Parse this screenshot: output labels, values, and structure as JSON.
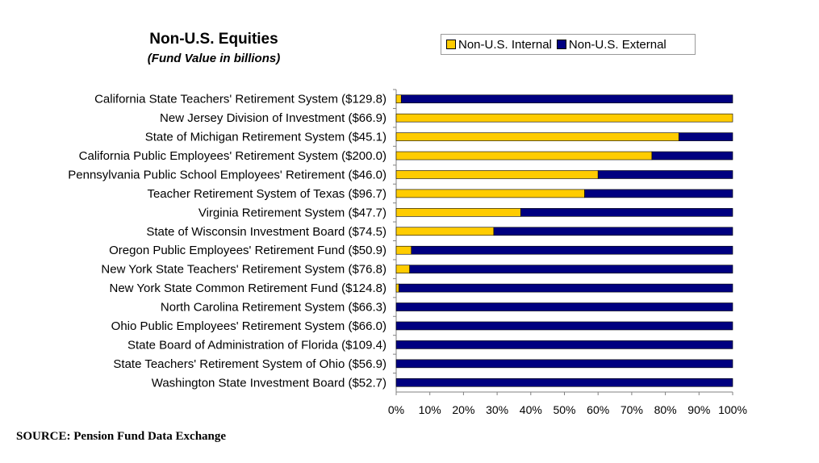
{
  "chart_data": {
    "type": "bar",
    "orientation": "horizontal",
    "stacked": true,
    "title": "Non-U.S. Equities",
    "subtitle": "(Fund Value in billions)",
    "categories": [
      "California State Teachers' Retirement System ($129.8)",
      "New Jersey Division of Investment ($66.9)",
      "State of Michigan Retirement System ($45.1)",
      "California Public Employees' Retirement System ($200.0)",
      "Pennsylvania Public School Employees' Retirement ($46.0)",
      "Teacher Retirement System of Texas ($96.7)",
      "Virginia Retirement System ($47.7)",
      "State of Wisconsin Investment Board ($74.5)",
      "Oregon Public Employees' Retirement Fund ($50.9)",
      "New York State Teachers' Retirement System ($76.8)",
      "New York State Common Retirement Fund ($124.8)",
      "North Carolina Retirement System ($66.3)",
      "Ohio Public Employees' Retirement System ($66.0)",
      "State Board of Administration of Florida ($109.4)",
      "State Teachers' Retirement System of Ohio ($56.9)",
      "Washington State Investment Board ($52.7)"
    ],
    "series": [
      {
        "name": "Non-U.S. Internal",
        "color": "#FFCC00",
        "values": [
          1.5,
          100,
          84,
          76,
          60,
          56,
          37,
          29,
          4.5,
          4,
          0.8,
          0,
          0,
          0,
          0,
          0
        ]
      },
      {
        "name": "Non-U.S. External",
        "color": "#000080",
        "values": [
          98.5,
          0,
          16,
          24,
          40,
          44,
          63,
          71,
          95.5,
          96,
          99.2,
          100,
          100,
          100,
          100,
          100
        ]
      }
    ],
    "xlim": [
      0,
      100
    ],
    "xticks": [
      "0%",
      "10%",
      "20%",
      "30%",
      "40%",
      "50%",
      "60%",
      "70%",
      "80%",
      "90%",
      "100%"
    ],
    "legend_position": "top-right"
  },
  "source": "SOURCE: Pension Fund Data Exchange"
}
